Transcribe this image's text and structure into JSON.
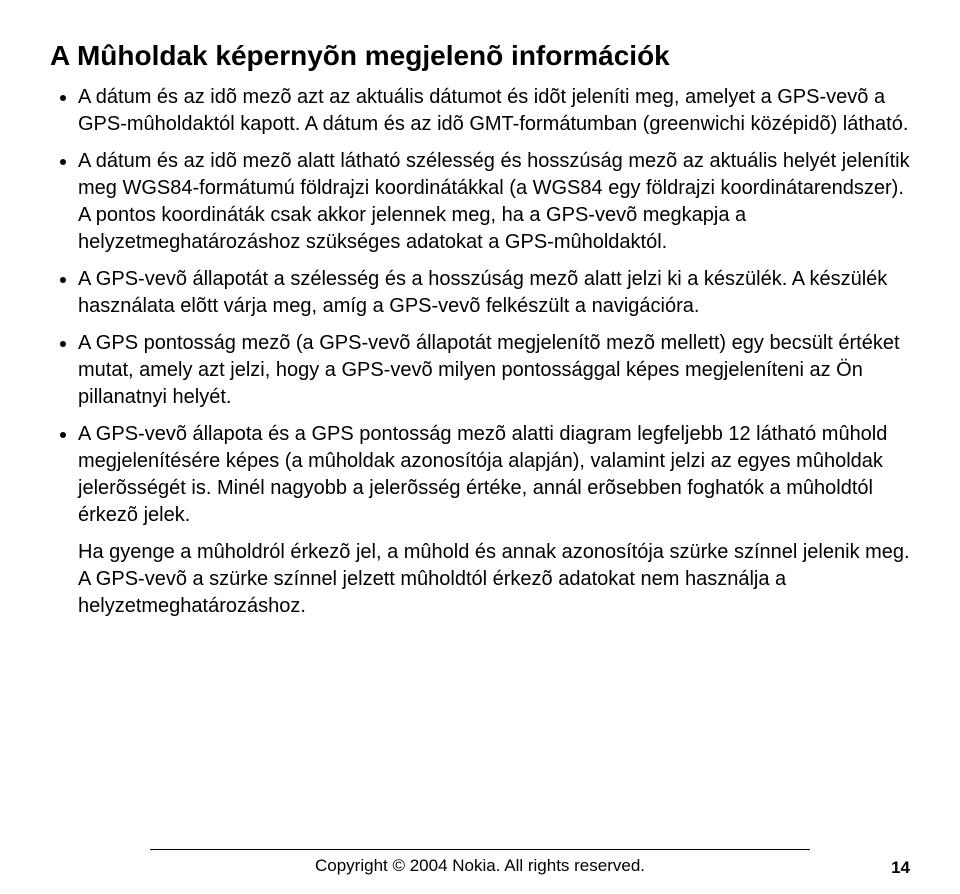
{
  "title": "A Mûholdak képernyõn megjelenõ információk",
  "bullets": [
    "A dátum és az idõ mezõ azt az aktuális dátumot és idõt jeleníti meg, amelyet a GPS-vevõ a GPS-mûholdaktól kapott. A dátum és az idõ GMT-formátumban (greenwichi középidõ) látható.",
    "A dátum és az idõ mezõ alatt látható szélesség és hosszúság mezõ az aktuális helyét jelenítik meg WGS84-formátumú földrajzi koordinátákkal (a WGS84 egy földrajzi koordinátarendszer). A pontos koordináták csak akkor jelennek meg, ha a GPS-vevõ megkapja a helyzetmeghatározáshoz szükséges adatokat a GPS-mûholdaktól.",
    "A GPS-vevõ állapotát a szélesség és a hosszúság mezõ alatt jelzi ki a készülék. A készülék használata elõtt várja meg, amíg a GPS-vevõ felkészült a navigációra.",
    "A GPS pontosság mezõ (a GPS-vevõ állapotát megjelenítõ mezõ mellett) egy becsült értéket mutat, amely azt jelzi, hogy a GPS-vevõ milyen pontossággal képes megjeleníteni az Ön pillanatnyi helyét.",
    "A GPS-vevõ állapota és a GPS pontosság mezõ alatti diagram legfeljebb 12 látható mûhold megjelenítésére képes (a mûholdak azonosítója alapján), valamint jelzi az egyes mûholdak jelerõsségét is. Minél nagyobb a jelerõsség értéke, annál erõsebben foghatók a mûholdtól érkezõ jelek."
  ],
  "sub_para": "Ha gyenge a mûholdról érkezõ jel, a mûhold és annak azonosítója szürke színnel jelenik meg. A GPS-vevõ a szürke színnel jelzett mûholdtól érkezõ adatokat nem használja a helyzetmeghatározáshoz.",
  "footer": "Copyright © 2004 Nokia. All rights reserved.",
  "page_number": "14"
}
